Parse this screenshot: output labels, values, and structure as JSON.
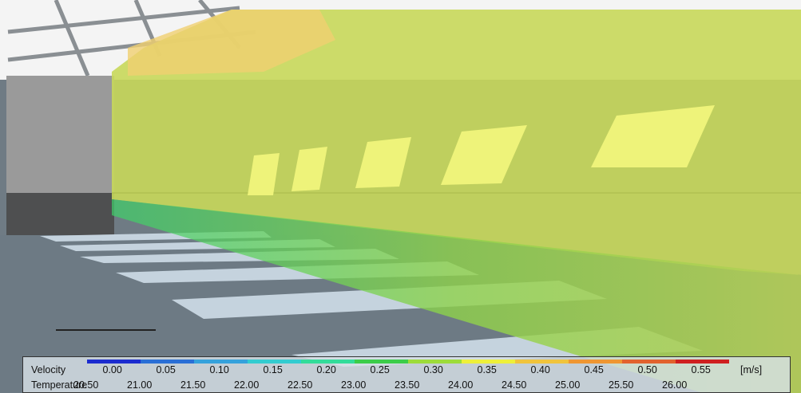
{
  "legend": {
    "colors": [
      "#1c2ccf",
      "#2a6fd6",
      "#35a2dc",
      "#33ccd0",
      "#33dc9a",
      "#3ccd4a",
      "#9ddc3a",
      "#eef03a",
      "#f0c43c",
      "#ef9632",
      "#e2622e",
      "#cf2020"
    ],
    "velocity": {
      "label": "Velocity",
      "values": [
        "0.00",
        "0.05",
        "0.10",
        "0.15",
        "0.20",
        "0.25",
        "0.30",
        "0.35",
        "0.40",
        "0.45",
        "0.50",
        "0.55"
      ],
      "unit": "[m/s]"
    },
    "temperature": {
      "label": "Temperature",
      "values": [
        "20.50",
        "21.00",
        "21.50",
        "22.00",
        "22.50",
        "23.00",
        "23.50",
        "24.00",
        "24.50",
        "25.00",
        "25.50",
        "26.00"
      ]
    }
  }
}
